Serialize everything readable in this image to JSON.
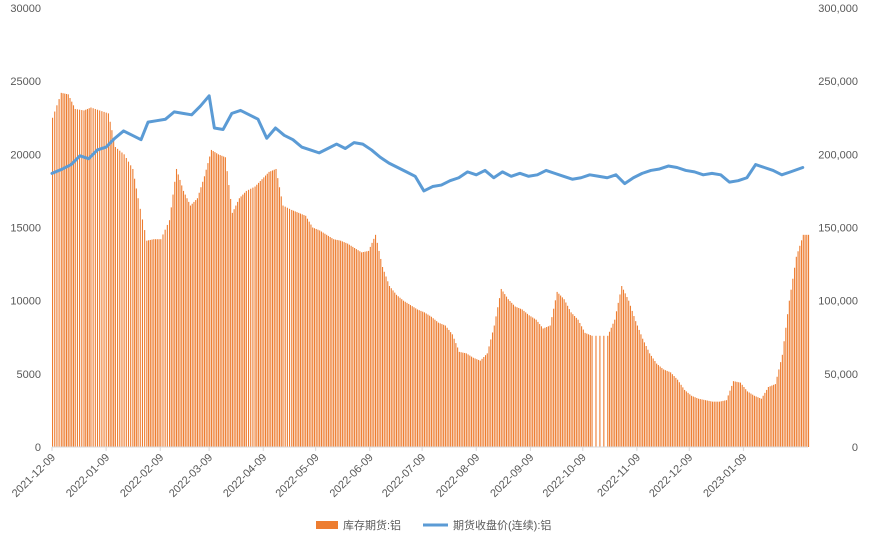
{
  "chart_data": {
    "type": "bar+line",
    "title": "",
    "left_axis": {
      "ylim": [
        0,
        30000
      ],
      "ticks": [
        "0",
        "5000",
        "10000",
        "15000",
        "20000",
        "25000",
        "30000"
      ]
    },
    "right_axis": {
      "ylim": [
        0,
        300000
      ],
      "ticks": [
        "0",
        "50,000",
        "100,000",
        "150,000",
        "200,000",
        "250,000",
        "300,000"
      ]
    },
    "x_ticks": [
      "2021-12-09",
      "2022-01-09",
      "2022-02-09",
      "2022-03-09",
      "2022-04-09",
      "2022-05-09",
      "2022-06-09",
      "2022-07-09",
      "2022-08-09",
      "2022-09-09",
      "2022-10-09",
      "2022-11-09",
      "2022-12-09",
      "2023-01-09"
    ],
    "x_range": [
      "2021-12-09",
      "2023-02-15"
    ],
    "series": [
      {
        "name": "库存期货:铝",
        "type": "bar",
        "axis": "left",
        "color": "#ED7D31",
        "points": [
          [
            "2021-12-09",
            22500
          ],
          [
            "2021-12-14",
            24200
          ],
          [
            "2021-12-18",
            24100
          ],
          [
            "2021-12-22",
            23100
          ],
          [
            "2021-12-27",
            23000
          ],
          [
            "2021-12-31",
            23200
          ],
          [
            "2022-01-05",
            23000
          ],
          [
            "2022-01-10",
            22800
          ],
          [
            "2022-01-14",
            20500
          ],
          [
            "2022-01-19",
            20000
          ],
          [
            "2022-01-24",
            19000
          ],
          [
            "2022-01-27",
            17000
          ],
          [
            "2022-02-01",
            14100
          ],
          [
            "2022-02-05",
            14200
          ],
          [
            "2022-02-09",
            14200
          ],
          [
            "2022-02-14",
            15500
          ],
          [
            "2022-02-18",
            19000
          ],
          [
            "2022-02-22",
            17500
          ],
          [
            "2022-02-26",
            16500
          ],
          [
            "2022-03-02",
            17000
          ],
          [
            "2022-03-06",
            18500
          ],
          [
            "2022-03-10",
            20300
          ],
          [
            "2022-03-14",
            20000
          ],
          [
            "2022-03-18",
            19800
          ],
          [
            "2022-03-22",
            16000
          ],
          [
            "2022-03-26",
            17000
          ],
          [
            "2022-03-30",
            17500
          ],
          [
            "2022-04-04",
            17800
          ],
          [
            "2022-04-08",
            18300
          ],
          [
            "2022-04-12",
            18800
          ],
          [
            "2022-04-16",
            19000
          ],
          [
            "2022-04-20",
            16500
          ],
          [
            "2022-04-25",
            16200
          ],
          [
            "2022-04-29",
            16000
          ],
          [
            "2022-05-03",
            15800
          ],
          [
            "2022-05-07",
            15000
          ],
          [
            "2022-05-11",
            14800
          ],
          [
            "2022-05-15",
            14500
          ],
          [
            "2022-05-19",
            14200
          ],
          [
            "2022-05-23",
            14100
          ],
          [
            "2022-05-27",
            13900
          ],
          [
            "2022-05-31",
            13600
          ],
          [
            "2022-06-04",
            13300
          ],
          [
            "2022-06-08",
            13400
          ],
          [
            "2022-06-12",
            14500
          ],
          [
            "2022-06-16",
            12300
          ],
          [
            "2022-06-20",
            11000
          ],
          [
            "2022-06-24",
            10400
          ],
          [
            "2022-06-28",
            10000
          ],
          [
            "2022-07-02",
            9700
          ],
          [
            "2022-07-06",
            9400
          ],
          [
            "2022-07-10",
            9200
          ],
          [
            "2022-07-14",
            8900
          ],
          [
            "2022-07-18",
            8500
          ],
          [
            "2022-07-22",
            8300
          ],
          [
            "2022-07-26",
            7700
          ],
          [
            "2022-07-30",
            6500
          ],
          [
            "2022-08-03",
            6400
          ],
          [
            "2022-08-07",
            6100
          ],
          [
            "2022-08-11",
            5900
          ],
          [
            "2022-08-15",
            6400
          ],
          [
            "2022-08-19",
            8300
          ],
          [
            "2022-08-23",
            10800
          ],
          [
            "2022-08-27",
            10100
          ],
          [
            "2022-08-31",
            9600
          ],
          [
            "2022-09-04",
            9400
          ],
          [
            "2022-09-08",
            9000
          ],
          [
            "2022-09-12",
            8700
          ],
          [
            "2022-09-16",
            8100
          ],
          [
            "2022-09-20",
            8300
          ],
          [
            "2022-09-24",
            10600
          ],
          [
            "2022-09-28",
            10100
          ],
          [
            "2022-10-02",
            9200
          ],
          [
            "2022-10-06",
            8700
          ],
          [
            "2022-10-10",
            7800
          ],
          [
            "2022-10-14",
            7600
          ],
          [
            "2022-10-23",
            7600
          ],
          [
            "2022-10-27",
            8700
          ],
          [
            "2022-10-31",
            11000
          ],
          [
            "2022-11-04",
            10000
          ],
          [
            "2022-11-08",
            8600
          ],
          [
            "2022-11-12",
            7400
          ],
          [
            "2022-11-16",
            6400
          ],
          [
            "2022-11-20",
            5700
          ],
          [
            "2022-11-24",
            5300
          ],
          [
            "2022-11-28",
            5100
          ],
          [
            "2022-12-02",
            4600
          ],
          [
            "2022-12-06",
            3900
          ],
          [
            "2022-12-10",
            3500
          ],
          [
            "2022-12-14",
            3300
          ],
          [
            "2022-12-18",
            3200
          ],
          [
            "2022-12-22",
            3100
          ],
          [
            "2022-12-26",
            3100
          ],
          [
            "2022-12-30",
            3200
          ],
          [
            "2023-01-03",
            4500
          ],
          [
            "2023-01-07",
            4400
          ],
          [
            "2023-01-11",
            3800
          ],
          [
            "2023-01-15",
            3500
          ],
          [
            "2023-01-19",
            3300
          ],
          [
            "2023-01-23",
            4100
          ],
          [
            "2023-01-27",
            4300
          ],
          [
            "2023-01-31",
            6300
          ],
          [
            "2023-02-04",
            10000
          ],
          [
            "2023-02-08",
            13000
          ],
          [
            "2023-02-12",
            14500
          ]
        ]
      },
      {
        "name": "期货收盘价(连续):铝",
        "type": "line",
        "axis": "right",
        "color": "#5B9BD5",
        "points": [
          [
            "2021-12-09",
            187000
          ],
          [
            "2021-12-15",
            190000
          ],
          [
            "2021-12-20",
            193000
          ],
          [
            "2021-12-25",
            199000
          ],
          [
            "2021-12-30",
            197000
          ],
          [
            "2022-01-04",
            203000
          ],
          [
            "2022-01-09",
            205000
          ],
          [
            "2022-01-14",
            211000
          ],
          [
            "2022-01-19",
            216000
          ],
          [
            "2022-01-24",
            213000
          ],
          [
            "2022-01-29",
            210000
          ],
          [
            "2022-02-02",
            222000
          ],
          [
            "2022-02-07",
            223000
          ],
          [
            "2022-02-12",
            224000
          ],
          [
            "2022-02-17",
            229000
          ],
          [
            "2022-02-22",
            228000
          ],
          [
            "2022-02-27",
            227000
          ],
          [
            "2022-03-04",
            233000
          ],
          [
            "2022-03-09",
            240000
          ],
          [
            "2022-03-12",
            218000
          ],
          [
            "2022-03-17",
            217000
          ],
          [
            "2022-03-22",
            228000
          ],
          [
            "2022-03-27",
            230000
          ],
          [
            "2022-04-01",
            227000
          ],
          [
            "2022-04-06",
            224000
          ],
          [
            "2022-04-11",
            211000
          ],
          [
            "2022-04-16",
            218000
          ],
          [
            "2022-04-21",
            213000
          ],
          [
            "2022-04-26",
            210000
          ],
          [
            "2022-05-01",
            205000
          ],
          [
            "2022-05-06",
            203000
          ],
          [
            "2022-05-11",
            201000
          ],
          [
            "2022-05-16",
            204000
          ],
          [
            "2022-05-21",
            207000
          ],
          [
            "2022-05-26",
            204000
          ],
          [
            "2022-05-31",
            208000
          ],
          [
            "2022-06-05",
            207000
          ],
          [
            "2022-06-10",
            203000
          ],
          [
            "2022-06-15",
            198000
          ],
          [
            "2022-06-20",
            194000
          ],
          [
            "2022-06-25",
            191000
          ],
          [
            "2022-06-30",
            188000
          ],
          [
            "2022-07-05",
            185000
          ],
          [
            "2022-07-10",
            175000
          ],
          [
            "2022-07-15",
            178000
          ],
          [
            "2022-07-20",
            179000
          ],
          [
            "2022-07-25",
            182000
          ],
          [
            "2022-07-30",
            184000
          ],
          [
            "2022-08-04",
            188000
          ],
          [
            "2022-08-09",
            186000
          ],
          [
            "2022-08-14",
            189000
          ],
          [
            "2022-08-19",
            184000
          ],
          [
            "2022-08-24",
            188000
          ],
          [
            "2022-08-29",
            185000
          ],
          [
            "2022-09-03",
            187000
          ],
          [
            "2022-09-08",
            185000
          ],
          [
            "2022-09-13",
            186000
          ],
          [
            "2022-09-18",
            189000
          ],
          [
            "2022-09-23",
            187000
          ],
          [
            "2022-09-28",
            185000
          ],
          [
            "2022-10-03",
            183000
          ],
          [
            "2022-10-08",
            184000
          ],
          [
            "2022-10-13",
            186000
          ],
          [
            "2022-10-18",
            185000
          ],
          [
            "2022-10-23",
            184000
          ],
          [
            "2022-10-28",
            186000
          ],
          [
            "2022-11-02",
            180000
          ],
          [
            "2022-11-07",
            184000
          ],
          [
            "2022-11-12",
            187000
          ],
          [
            "2022-11-17",
            189000
          ],
          [
            "2022-11-22",
            190000
          ],
          [
            "2022-11-27",
            192000
          ],
          [
            "2022-12-02",
            191000
          ],
          [
            "2022-12-07",
            189000
          ],
          [
            "2022-12-12",
            188000
          ],
          [
            "2022-12-17",
            186000
          ],
          [
            "2022-12-22",
            187000
          ],
          [
            "2022-12-27",
            186000
          ],
          [
            "2023-01-01",
            181000
          ],
          [
            "2023-01-06",
            182000
          ],
          [
            "2023-01-11",
            184000
          ],
          [
            "2023-01-16",
            193000
          ],
          [
            "2023-01-21",
            191000
          ],
          [
            "2023-01-26",
            189000
          ],
          [
            "2023-01-31",
            186000
          ],
          [
            "2023-02-05",
            188000
          ],
          [
            "2023-02-12",
            191000
          ]
        ]
      }
    ],
    "legend": {
      "position": "bottom",
      "items": [
        "库存期货:铝",
        "期货收盘价(连续):铝"
      ]
    },
    "grid": false
  }
}
